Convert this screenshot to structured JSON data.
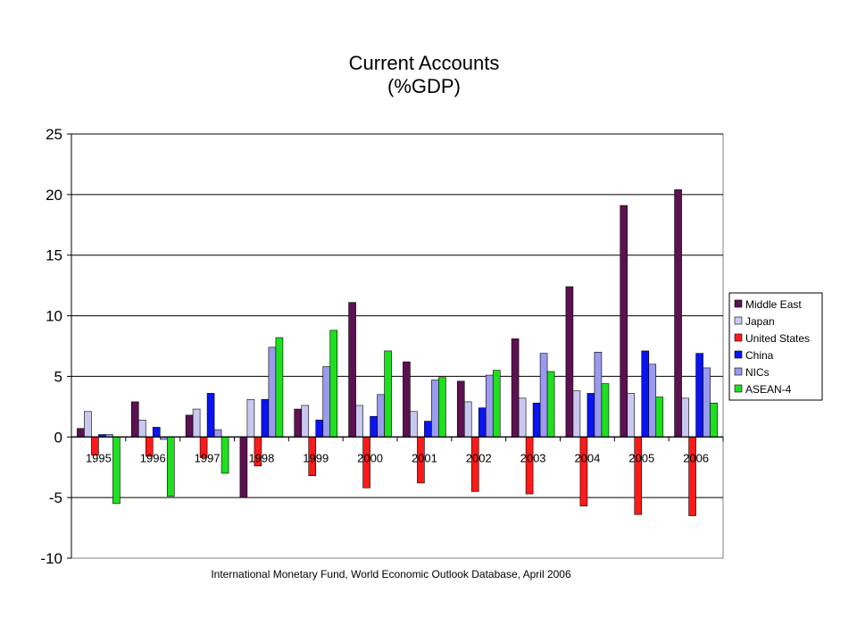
{
  "chart_data": {
    "type": "bar",
    "title": "Current Accounts",
    "subtitle": "(%GDP)",
    "source": "International Monetary Fund, World Economic Outlook Database, April 2006",
    "categories": [
      "1995",
      "1996",
      "1997",
      "1998",
      "1999",
      "2000",
      "2001",
      "2002",
      "2003",
      "2004",
      "2005",
      "2006"
    ],
    "ylim": [
      -10,
      25
    ],
    "yticks": [
      -10,
      -5,
      0,
      5,
      10,
      15,
      20,
      25
    ],
    "grid": true,
    "legend_position": "right",
    "series": [
      {
        "name": "Middle East",
        "color": "#5c1150",
        "values": [
          0.7,
          2.9,
          1.8,
          -5.0,
          2.3,
          11.1,
          6.2,
          4.6,
          8.1,
          12.4,
          19.1,
          20.4
        ]
      },
      {
        "name": "Japan",
        "color": "#c8c8f0",
        "values": [
          2.1,
          1.4,
          2.3,
          3.1,
          2.6,
          2.6,
          2.1,
          2.9,
          3.2,
          3.8,
          3.6,
          3.2
        ]
      },
      {
        "name": "United States",
        "color": "#ff1a1a",
        "values": [
          -1.5,
          -1.6,
          -1.7,
          -2.4,
          -3.2,
          -4.2,
          -3.8,
          -4.5,
          -4.7,
          -5.7,
          -6.4,
          -6.5
        ]
      },
      {
        "name": "China",
        "color": "#0a14f0",
        "values": [
          0.2,
          0.8,
          3.6,
          3.1,
          1.4,
          1.7,
          1.3,
          2.4,
          2.8,
          3.6,
          7.1,
          6.9
        ]
      },
      {
        "name": "NICs",
        "color": "#9a9aee",
        "values": [
          0.2,
          -0.2,
          0.6,
          7.4,
          5.8,
          3.5,
          4.7,
          5.1,
          6.9,
          7.0,
          6.0,
          5.7
        ]
      },
      {
        "name": "ASEAN-4",
        "color": "#1ee01e",
        "values": [
          -5.5,
          -4.9,
          -3.0,
          8.2,
          8.8,
          7.1,
          4.9,
          5.5,
          5.4,
          4.4,
          3.3,
          2.8
        ]
      }
    ]
  }
}
